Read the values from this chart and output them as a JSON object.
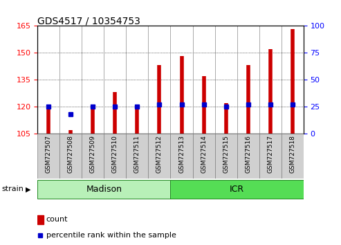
{
  "title": "GDS4517 / 10354753",
  "samples": [
    "GSM727507",
    "GSM727508",
    "GSM727509",
    "GSM727510",
    "GSM727511",
    "GSM727512",
    "GSM727513",
    "GSM727514",
    "GSM727515",
    "GSM727516",
    "GSM727517",
    "GSM727518"
  ],
  "counts": [
    121,
    107,
    120,
    128,
    120,
    143,
    148,
    137,
    122,
    143,
    152,
    163
  ],
  "percentiles": [
    25,
    18,
    25,
    25,
    25,
    27,
    27,
    27,
    25,
    27,
    27,
    27
  ],
  "ylim_left": [
    105,
    165
  ],
  "ylim_right": [
    0,
    100
  ],
  "yticks_left": [
    105,
    120,
    135,
    150,
    165
  ],
  "yticks_right": [
    0,
    25,
    50,
    75,
    100
  ],
  "groups": [
    {
      "label": "Madison",
      "start": 0,
      "end": 5,
      "light_color": "#B8F0B8",
      "dark_color": "#55DD55"
    },
    {
      "label": "ICR",
      "start": 6,
      "end": 11,
      "light_color": "#55DD55",
      "dark_color": "#55DD55"
    }
  ],
  "bar_color": "#CC0000",
  "percentile_color": "#0000CC",
  "legend_count_label": "count",
  "legend_pct_label": "percentile rank within the sample",
  "strain_label": "strain",
  "cell_bg": "#D0D0D0",
  "cell_border": "#808080"
}
